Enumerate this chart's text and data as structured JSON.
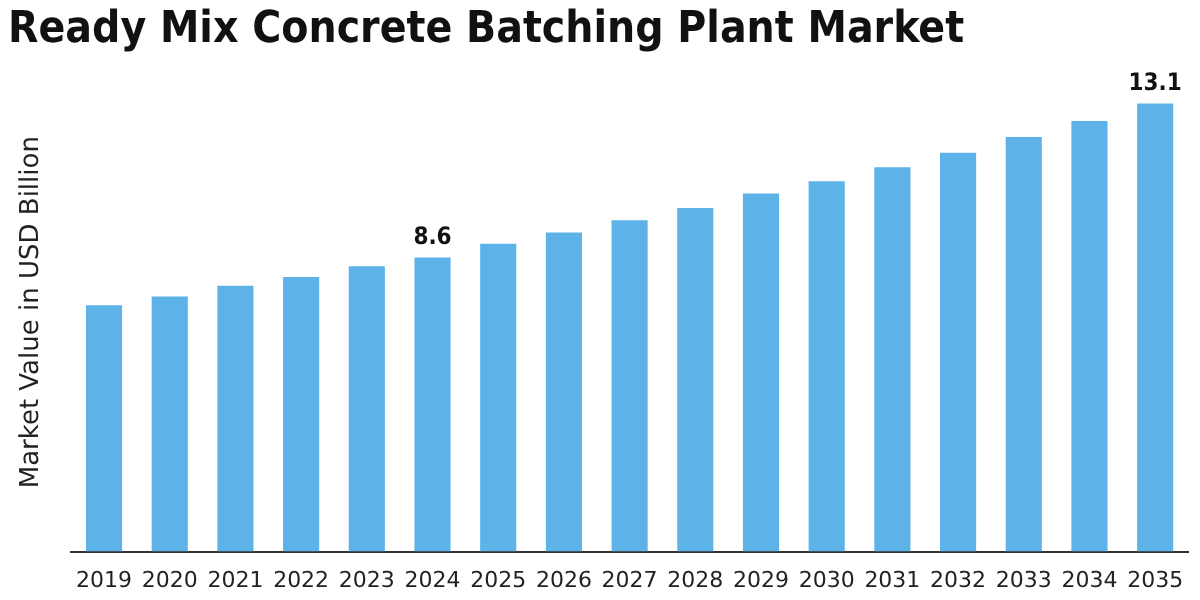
{
  "chart_data": {
    "type": "bar",
    "title": "Ready Mix Concrete Batching Plant Market",
    "ylabel": "Market Value in USD Billion",
    "categories": [
      "2019",
      "2020",
      "2021",
      "2022",
      "2023",
      "2024",
      "2025",
      "2026",
      "2027",
      "2028",
      "2029",
      "2030",
      "2031",
      "2032",
      "2033",
      "2034",
      "2035"
    ],
    "values": [
      7.2,
      7.46,
      7.77,
      8.03,
      8.34,
      8.6,
      9.0,
      9.33,
      9.69,
      10.05,
      10.47,
      10.83,
      11.24,
      11.66,
      12.12,
      12.59,
      13.1
    ],
    "value_labels": [
      null,
      null,
      null,
      null,
      null,
      "8.6",
      null,
      null,
      null,
      null,
      null,
      null,
      null,
      null,
      null,
      null,
      "13.1"
    ],
    "color": "#5db3e8",
    "grid": false,
    "legend": false
  }
}
